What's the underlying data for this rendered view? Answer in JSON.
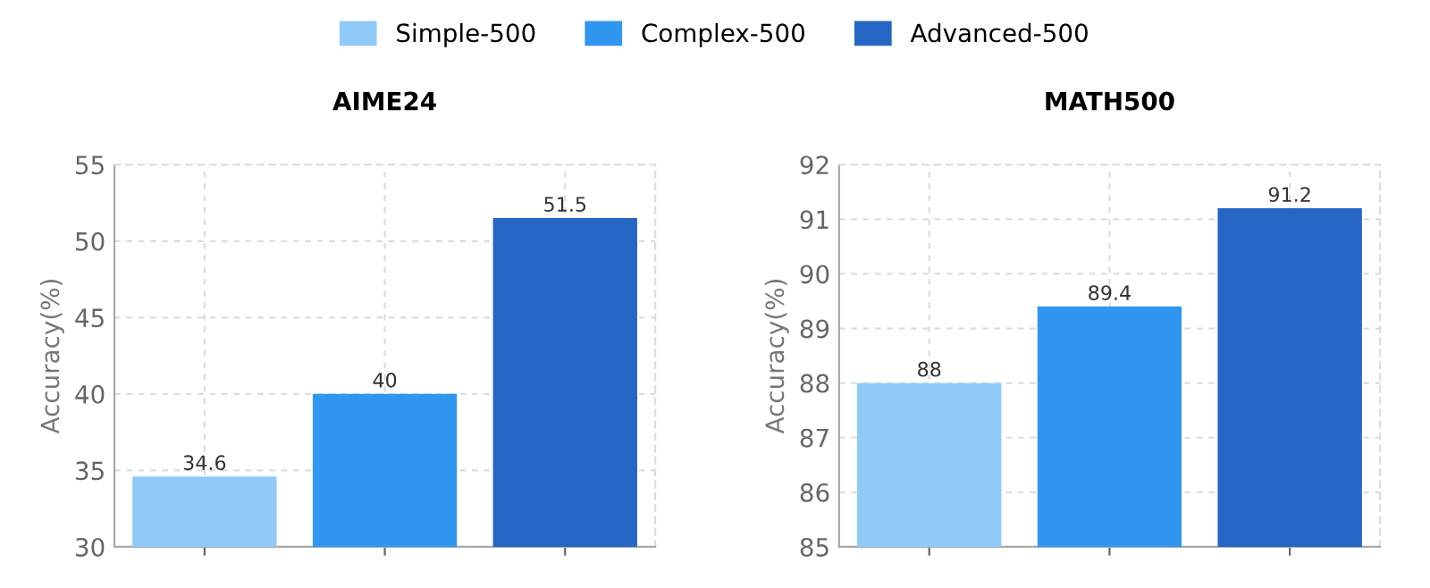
{
  "chart_data": [
    {
      "type": "bar",
      "title": "AIME24",
      "ylabel": "Accuracy(%)",
      "categories": [
        null,
        null,
        null
      ],
      "series": [
        {
          "name": "Simple-500",
          "color": "#90caf9",
          "values": [
            34.6,
            null,
            null
          ]
        },
        {
          "name": "Complex-500",
          "color": "#3196f0",
          "values": [
            null,
            40,
            null
          ]
        },
        {
          "name": "Advanced-500",
          "color": "#2566c4",
          "values": [
            null,
            null,
            51.5
          ]
        }
      ],
      "ylim": [
        30,
        55
      ],
      "yticks": [
        30,
        35,
        40,
        45,
        50,
        55
      ],
      "grid": true,
      "data_labels": true,
      "legend": "top"
    },
    {
      "type": "bar",
      "title": "MATH500",
      "ylabel": "Accuracy(%)",
      "categories": [
        null,
        null,
        null
      ],
      "series": [
        {
          "color": "#90caf9",
          "values": [
            88,
            null,
            null
          ]
        },
        {
          "color": "#3196f0",
          "values": [
            null,
            89.4,
            null
          ]
        },
        {
          "color": "#2566c4",
          "values": [
            null,
            null,
            91.2
          ]
        }
      ],
      "ylim": [
        85,
        92
      ],
      "yticks": [
        85,
        86,
        87,
        88,
        89,
        90,
        91,
        92
      ],
      "grid": true,
      "data_labels": true
    }
  ]
}
